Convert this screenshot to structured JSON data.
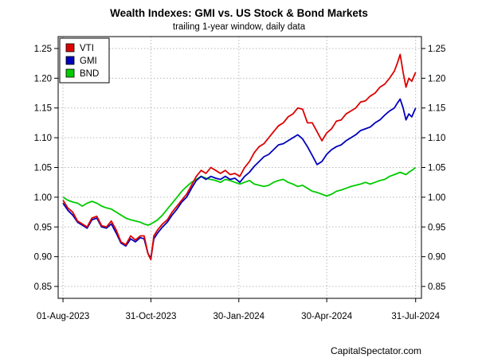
{
  "chart_data": {
    "type": "line",
    "title": "Wealth Indexes: GMI vs. US Stock & Bond Markets",
    "subtitle": "trailing 1-year window, daily data",
    "credit": "CapitalSpectator.com",
    "xlabel": "",
    "ylabel": "",
    "ylim": [
      0.83,
      1.27
    ],
    "yticks": [
      "0.85",
      "0.90",
      "0.95",
      "1.00",
      "1.05",
      "1.10",
      "1.15",
      "1.20",
      "1.25"
    ],
    "xlim": [
      -5,
      371
    ],
    "xticks": [
      {
        "day": 0,
        "label": "01-Aug-2023"
      },
      {
        "day": 91,
        "label": "31-Oct-2023"
      },
      {
        "day": 182,
        "label": "30-Jan-2024"
      },
      {
        "day": 273,
        "label": "30-Apr-2024"
      },
      {
        "day": 365,
        "label": "31-Jul-2024"
      }
    ],
    "grid": true,
    "legend_position": "top-left",
    "series": [
      {
        "name": "VTI",
        "color": "#dd0000",
        "x": [
          0,
          5,
          10,
          15,
          20,
          25,
          30,
          35,
          40,
          45,
          50,
          55,
          60,
          65,
          70,
          75,
          80,
          84,
          88,
          91,
          94,
          98,
          103,
          108,
          113,
          118,
          123,
          128,
          133,
          138,
          143,
          148,
          153,
          158,
          163,
          168,
          173,
          178,
          183,
          188,
          193,
          198,
          203,
          208,
          213,
          218,
          223,
          228,
          233,
          238,
          243,
          248,
          253,
          258,
          263,
          268,
          273,
          278,
          283,
          288,
          293,
          298,
          303,
          308,
          313,
          318,
          323,
          328,
          333,
          338,
          343,
          346,
          349,
          352,
          355,
          358,
          361,
          365
        ],
        "y": [
          0.995,
          0.982,
          0.975,
          0.96,
          0.955,
          0.95,
          0.965,
          0.968,
          0.952,
          0.95,
          0.96,
          0.945,
          0.925,
          0.92,
          0.935,
          0.928,
          0.935,
          0.935,
          0.905,
          0.895,
          0.935,
          0.945,
          0.955,
          0.962,
          0.975,
          0.985,
          0.995,
          1.005,
          1.02,
          1.035,
          1.045,
          1.04,
          1.05,
          1.045,
          1.04,
          1.045,
          1.038,
          1.04,
          1.035,
          1.05,
          1.06,
          1.075,
          1.085,
          1.09,
          1.1,
          1.11,
          1.12,
          1.125,
          1.135,
          1.14,
          1.15,
          1.148,
          1.125,
          1.125,
          1.11,
          1.095,
          1.108,
          1.115,
          1.128,
          1.13,
          1.14,
          1.145,
          1.15,
          1.16,
          1.162,
          1.17,
          1.175,
          1.185,
          1.19,
          1.2,
          1.212,
          1.225,
          1.24,
          1.21,
          1.185,
          1.2,
          1.195,
          1.21
        ]
      },
      {
        "name": "GMI",
        "color": "#0000bb",
        "x": [
          0,
          5,
          10,
          15,
          20,
          25,
          30,
          35,
          40,
          45,
          50,
          55,
          60,
          65,
          70,
          75,
          80,
          84,
          88,
          91,
          94,
          98,
          103,
          108,
          113,
          118,
          123,
          128,
          133,
          138,
          143,
          148,
          153,
          158,
          163,
          168,
          173,
          178,
          183,
          188,
          193,
          198,
          203,
          208,
          213,
          218,
          223,
          228,
          233,
          238,
          243,
          248,
          253,
          258,
          263,
          268,
          273,
          278,
          283,
          288,
          293,
          298,
          303,
          308,
          313,
          318,
          323,
          328,
          333,
          338,
          343,
          346,
          349,
          352,
          355,
          358,
          361,
          365
        ],
        "y": [
          0.99,
          0.978,
          0.97,
          0.958,
          0.953,
          0.948,
          0.962,
          0.965,
          0.95,
          0.948,
          0.955,
          0.94,
          0.923,
          0.918,
          0.93,
          0.925,
          0.932,
          0.93,
          0.905,
          0.898,
          0.93,
          0.94,
          0.95,
          0.958,
          0.97,
          0.98,
          0.992,
          1.0,
          1.015,
          1.028,
          1.035,
          1.03,
          1.035,
          1.032,
          1.03,
          1.035,
          1.03,
          1.032,
          1.025,
          1.035,
          1.042,
          1.052,
          1.06,
          1.068,
          1.072,
          1.08,
          1.088,
          1.09,
          1.095,
          1.1,
          1.105,
          1.098,
          1.085,
          1.07,
          1.055,
          1.06,
          1.072,
          1.08,
          1.085,
          1.088,
          1.095,
          1.1,
          1.105,
          1.112,
          1.115,
          1.118,
          1.125,
          1.13,
          1.138,
          1.145,
          1.15,
          1.158,
          1.165,
          1.15,
          1.13,
          1.14,
          1.135,
          1.15
        ]
      },
      {
        "name": "BND",
        "color": "#00cc00",
        "x": [
          0,
          5,
          10,
          15,
          20,
          25,
          30,
          35,
          40,
          45,
          50,
          55,
          60,
          65,
          70,
          75,
          80,
          84,
          88,
          91,
          94,
          98,
          103,
          108,
          113,
          118,
          123,
          128,
          133,
          138,
          143,
          148,
          153,
          158,
          163,
          168,
          173,
          178,
          183,
          188,
          193,
          198,
          203,
          208,
          213,
          218,
          223,
          228,
          233,
          238,
          243,
          248,
          253,
          258,
          263,
          268,
          273,
          278,
          283,
          288,
          293,
          298,
          303,
          308,
          313,
          318,
          323,
          328,
          333,
          338,
          343,
          346,
          349,
          352,
          355,
          358,
          361,
          365
        ],
        "y": [
          1.0,
          0.995,
          0.992,
          0.99,
          0.985,
          0.99,
          0.993,
          0.99,
          0.985,
          0.982,
          0.98,
          0.975,
          0.97,
          0.965,
          0.962,
          0.96,
          0.958,
          0.955,
          0.953,
          0.955,
          0.958,
          0.962,
          0.97,
          0.98,
          0.99,
          1.0,
          1.01,
          1.018,
          1.025,
          1.03,
          1.035,
          1.032,
          1.03,
          1.028,
          1.025,
          1.03,
          1.028,
          1.025,
          1.022,
          1.025,
          1.028,
          1.022,
          1.02,
          1.018,
          1.02,
          1.025,
          1.028,
          1.03,
          1.025,
          1.022,
          1.018,
          1.02,
          1.015,
          1.01,
          1.008,
          1.005,
          1.002,
          1.005,
          1.01,
          1.012,
          1.015,
          1.018,
          1.02,
          1.022,
          1.025,
          1.022,
          1.025,
          1.028,
          1.03,
          1.035,
          1.038,
          1.04,
          1.042,
          1.04,
          1.038,
          1.042,
          1.045,
          1.05
        ]
      }
    ]
  }
}
